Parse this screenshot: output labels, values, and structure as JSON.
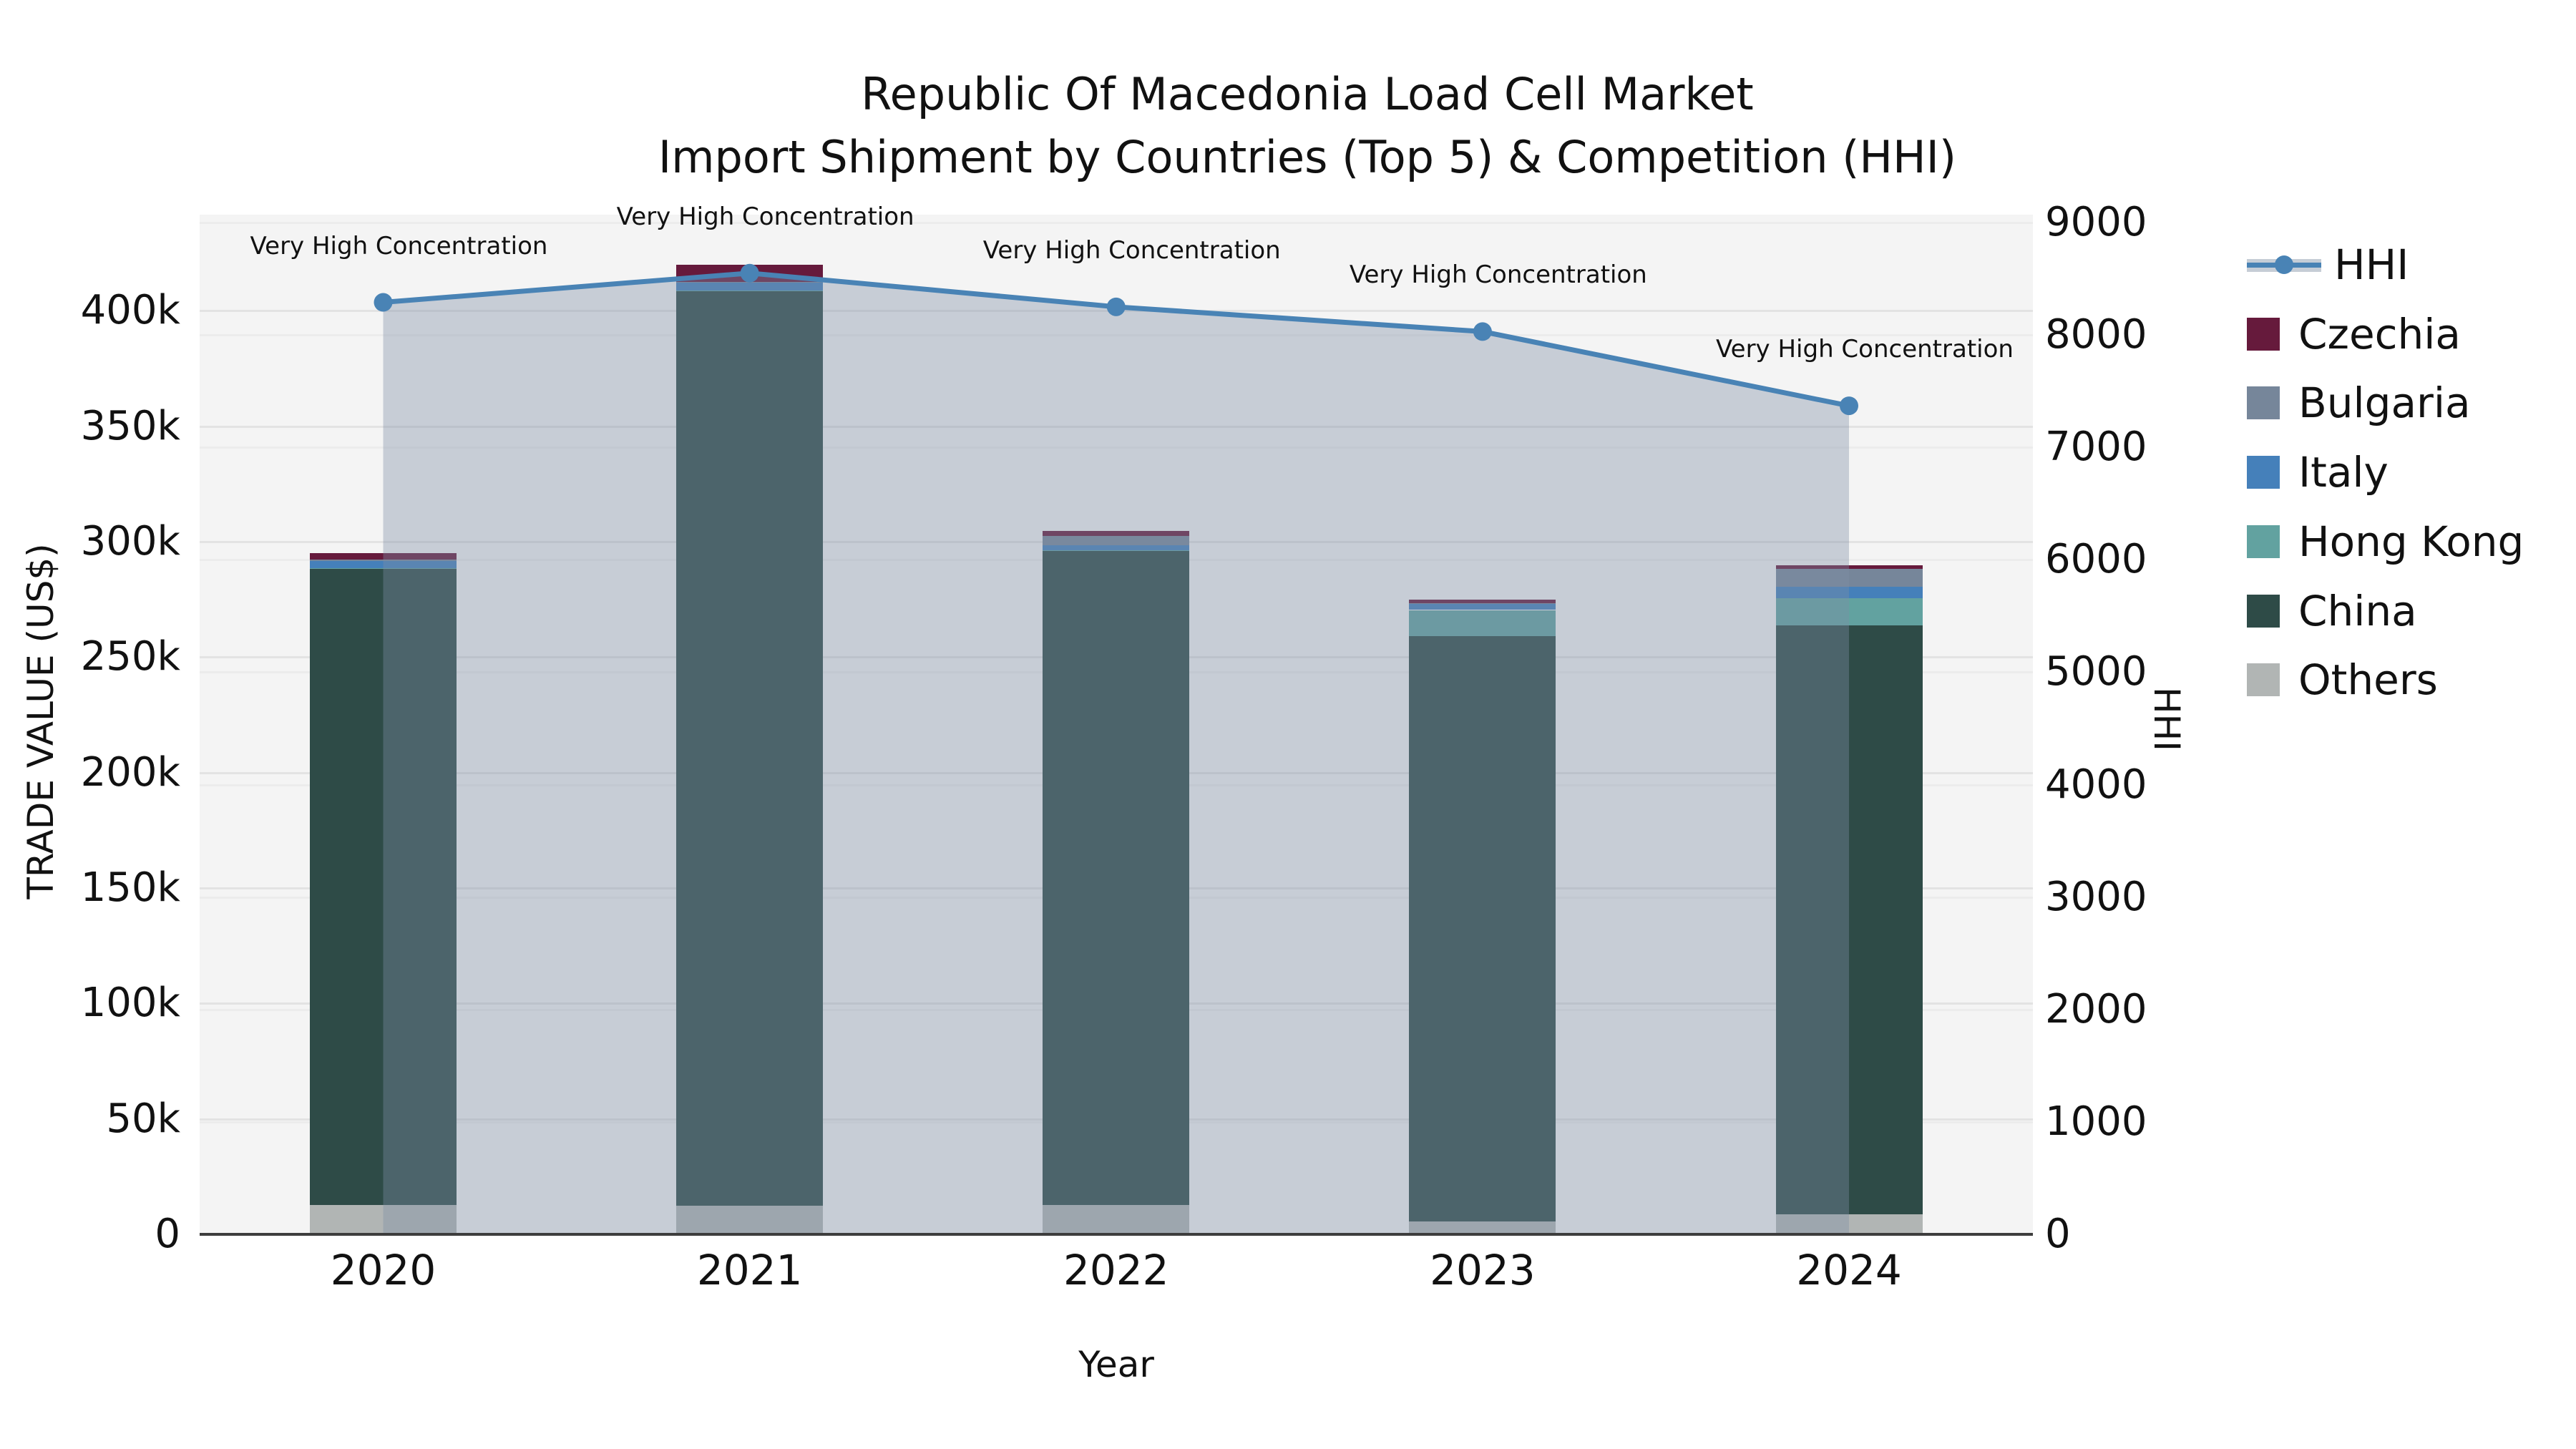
{
  "title": {
    "line1": "Republic Of Macedonia Load Cell Market",
    "line2": "Import Shipment by Countries (Top 5) & Competition (HHI)"
  },
  "axes": {
    "left": {
      "label": "TRADE VALUE (US$)",
      "ticks": [
        "0",
        "50k",
        "100k",
        "150k",
        "200k",
        "250k",
        "300k",
        "350k",
        "400k"
      ],
      "tick_values": [
        0,
        50000,
        100000,
        150000,
        200000,
        250000,
        300000,
        350000,
        400000
      ]
    },
    "right": {
      "label": "HHI",
      "ticks": [
        "0",
        "1000",
        "2000",
        "3000",
        "4000",
        "5000",
        "6000",
        "7000",
        "8000",
        "9000"
      ],
      "tick_values": [
        0,
        1000,
        2000,
        3000,
        4000,
        5000,
        6000,
        7000,
        8000,
        9000
      ]
    },
    "x": {
      "label": "Year",
      "categories": [
        "2020",
        "2021",
        "2022",
        "2023",
        "2024"
      ]
    }
  },
  "chart_data": {
    "type": "bar",
    "subtype": "stacked-bars-with-line-overlay",
    "categories": [
      "2020",
      "2021",
      "2022",
      "2023",
      "2024"
    ],
    "series": [
      {
        "name": "Others",
        "type": "bar",
        "color": "#b1b5b4",
        "values": [
          12700,
          12500,
          12700,
          5600,
          8700
        ]
      },
      {
        "name": "China",
        "type": "bar",
        "color": "#2e4b47",
        "values": [
          275600,
          396000,
          283300,
          253600,
          255000
        ]
      },
      {
        "name": "Hong Kong",
        "type": "bar",
        "color": "#62a2a0",
        "values": [
          300,
          300,
          300,
          11200,
          11700
        ]
      },
      {
        "name": "Italy",
        "type": "bar",
        "color": "#4580ba",
        "values": [
          3100,
          3400,
          2100,
          2700,
          5200
        ]
      },
      {
        "name": "Bulgaria",
        "type": "bar",
        "color": "#76869a",
        "values": [
          500,
          400,
          4100,
          300,
          7700
        ]
      },
      {
        "name": "Czechia",
        "type": "bar",
        "color": "#661a3c",
        "values": [
          2900,
          7200,
          2100,
          1500,
          1500
        ]
      }
    ],
    "line_series": {
      "name": "HHI",
      "type": "line",
      "color": "#4983b5",
      "fill_color": "#7d8fa6",
      "fill_opacity": 0.38,
      "values": [
        8290,
        8550,
        8250,
        8030,
        7370
      ]
    },
    "annotations": [
      {
        "x": "2020",
        "text": "Very High Concentration"
      },
      {
        "x": "2021",
        "text": "Very High Concentration"
      },
      {
        "x": "2022",
        "text": "Very High Concentration"
      },
      {
        "x": "2023",
        "text": "Very High Concentration"
      },
      {
        "x": "2024",
        "text": "Very High Concentration"
      }
    ],
    "title": "Republic Of Macedonia Load Cell Market Import Shipment by Countries (Top 5) & Competition (HHI)",
    "xlabel": "Year",
    "ylabel_left": "TRADE VALUE (US$)",
    "ylabel_right": "HHI",
    "ylim_left": [
      0,
      441600
    ],
    "ylim_right": [
      0,
      9070
    ],
    "grid": true,
    "legend_position": "right"
  },
  "legend": {
    "items": [
      {
        "label": "HHI",
        "swatch": "line-marker",
        "color": "#4983b5"
      },
      {
        "label": "Czechia",
        "swatch": "square",
        "color": "#661a3c"
      },
      {
        "label": "Bulgaria",
        "swatch": "square",
        "color": "#76869a"
      },
      {
        "label": "Italy",
        "swatch": "square",
        "color": "#4580ba"
      },
      {
        "label": "Hong Kong",
        "swatch": "square",
        "color": "#62a2a0"
      },
      {
        "label": "China",
        "swatch": "square",
        "color": "#2e4b47"
      },
      {
        "label": "Others",
        "swatch": "square",
        "color": "#b1b5b4"
      }
    ]
  },
  "colors": {
    "plot_background": "#f4f4f4",
    "grid_major": "#e3e3e3",
    "grid_minor": "#ececec",
    "axis_line": "#3d3d3d",
    "text": "#111111"
  }
}
